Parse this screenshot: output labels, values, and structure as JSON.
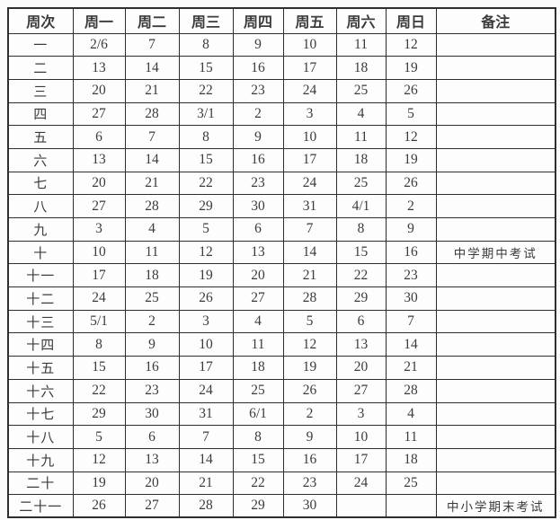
{
  "colors": {
    "background": "#fbfbfb",
    "table_background": "#fdfdfd",
    "border": "#2e2e2e",
    "text": "#3b3b3b",
    "remark_text": "#4a4a4a"
  },
  "table": {
    "headers": [
      "周次",
      "周一",
      "周二",
      "周三",
      "周四",
      "周五",
      "周六",
      "周日",
      "备注"
    ],
    "rows": [
      {
        "week": "一",
        "days": [
          "2/6",
          "7",
          "8",
          "9",
          "10",
          "11",
          "12"
        ],
        "remark": ""
      },
      {
        "week": "二",
        "days": [
          "13",
          "14",
          "15",
          "16",
          "17",
          "18",
          "19"
        ],
        "remark": ""
      },
      {
        "week": "三",
        "days": [
          "20",
          "21",
          "22",
          "23",
          "24",
          "25",
          "26"
        ],
        "remark": ""
      },
      {
        "week": "四",
        "days": [
          "27",
          "28",
          "3/1",
          "2",
          "3",
          "4",
          "5"
        ],
        "remark": ""
      },
      {
        "week": "五",
        "days": [
          "6",
          "7",
          "8",
          "9",
          "10",
          "11",
          "12"
        ],
        "remark": ""
      },
      {
        "week": "六",
        "days": [
          "13",
          "14",
          "15",
          "16",
          "17",
          "18",
          "19"
        ],
        "remark": ""
      },
      {
        "week": "七",
        "days": [
          "20",
          "21",
          "22",
          "23",
          "24",
          "25",
          "26"
        ],
        "remark": ""
      },
      {
        "week": "八",
        "days": [
          "27",
          "28",
          "29",
          "30",
          "31",
          "4/1",
          "2"
        ],
        "remark": ""
      },
      {
        "week": "九",
        "days": [
          "3",
          "4",
          "5",
          "6",
          "7",
          "8",
          "9"
        ],
        "remark": ""
      },
      {
        "week": "十",
        "days": [
          "10",
          "11",
          "12",
          "13",
          "14",
          "15",
          "16"
        ],
        "remark": "中学期中考试"
      },
      {
        "week": "十一",
        "days": [
          "17",
          "18",
          "19",
          "20",
          "21",
          "22",
          "23"
        ],
        "remark": ""
      },
      {
        "week": "十二",
        "days": [
          "24",
          "25",
          "26",
          "27",
          "28",
          "29",
          "30"
        ],
        "remark": ""
      },
      {
        "week": "十三",
        "days": [
          "5/1",
          "2",
          "3",
          "4",
          "5",
          "6",
          "7"
        ],
        "remark": ""
      },
      {
        "week": "十四",
        "days": [
          "8",
          "9",
          "10",
          "11",
          "12",
          "13",
          "14"
        ],
        "remark": ""
      },
      {
        "week": "十五",
        "days": [
          "15",
          "16",
          "17",
          "18",
          "19",
          "20",
          "21"
        ],
        "remark": ""
      },
      {
        "week": "十六",
        "days": [
          "22",
          "23",
          "24",
          "25",
          "26",
          "27",
          "28"
        ],
        "remark": ""
      },
      {
        "week": "十七",
        "days": [
          "29",
          "30",
          "31",
          "6/1",
          "2",
          "3",
          "4"
        ],
        "remark": ""
      },
      {
        "week": "十八",
        "days": [
          "5",
          "6",
          "7",
          "8",
          "9",
          "10",
          "11"
        ],
        "remark": ""
      },
      {
        "week": "十九",
        "days": [
          "12",
          "13",
          "14",
          "15",
          "16",
          "17",
          "18"
        ],
        "remark": ""
      },
      {
        "week": "二十",
        "days": [
          "19",
          "20",
          "21",
          "22",
          "23",
          "24",
          "25"
        ],
        "remark": ""
      },
      {
        "week": "二十一",
        "days": [
          "26",
          "27",
          "28",
          "29",
          "30",
          "",
          ""
        ],
        "remark": "中小学期末考试"
      }
    ]
  }
}
